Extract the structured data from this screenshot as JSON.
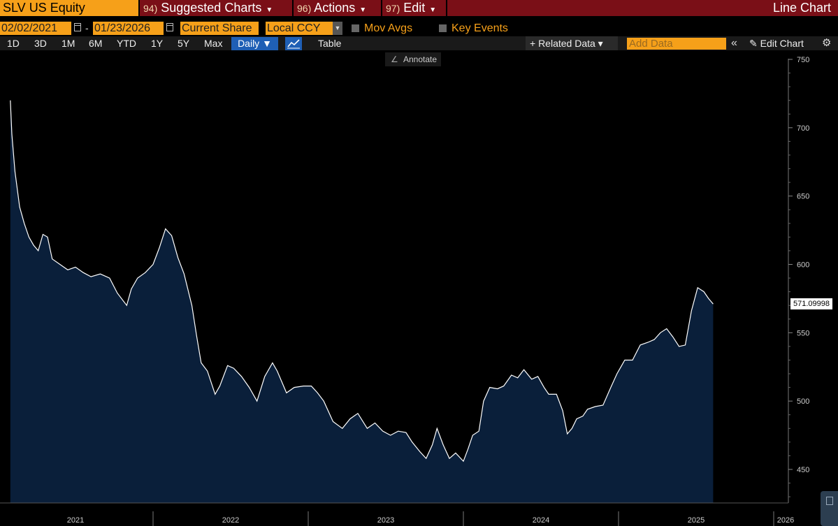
{
  "toolbar": {
    "ticker": "SLV US Equity",
    "menus": [
      {
        "num": "94)",
        "label": "Suggested Charts"
      },
      {
        "num": "96)",
        "label": "Actions"
      },
      {
        "num": "97)",
        "label": "Edit"
      }
    ],
    "chart_type_label": "Line Chart"
  },
  "range": {
    "start_date": "02/02/2021",
    "end_date": "01/23/2026",
    "dash": "-",
    "mode": "Current Share",
    "currency": "Local CCY",
    "mov_avgs": "Mov Avgs",
    "key_events": "Key Events"
  },
  "periods": [
    "1D",
    "3D",
    "1M",
    "6M",
    "YTD",
    "1Y",
    "5Y",
    "Max"
  ],
  "controls": {
    "frequency": "Daily ▼",
    "table": "Table",
    "related": "+ Related Data ▾",
    "add_data_placeholder": "Add Data",
    "edit_chart": "Edit Chart",
    "annotate": "Annotate"
  },
  "colors": {
    "accent": "#f6a019",
    "bar": "#7a0f17",
    "fill": "#0a1f3a",
    "line": "#ffffff"
  },
  "chart_data": {
    "type": "area",
    "x_unit": "year fraction",
    "ylim": [
      425,
      755
    ],
    "yticks": [
      450,
      500,
      550,
      600,
      650,
      700,
      750
    ],
    "xtick_labels": [
      "2021",
      "2022",
      "2023",
      "2024",
      "2025",
      "2026"
    ],
    "last_value_label": "571.09998",
    "series": [
      {
        "points": [
          [
            2021.08,
            720
          ],
          [
            2021.09,
            695
          ],
          [
            2021.11,
            668
          ],
          [
            2021.14,
            642
          ],
          [
            2021.17,
            630
          ],
          [
            2021.2,
            620
          ],
          [
            2021.23,
            614
          ],
          [
            2021.26,
            610
          ],
          [
            2021.29,
            622
          ],
          [
            2021.32,
            620
          ],
          [
            2021.35,
            604
          ],
          [
            2021.4,
            600
          ],
          [
            2021.45,
            596
          ],
          [
            2021.5,
            598
          ],
          [
            2021.55,
            594
          ],
          [
            2021.6,
            591
          ],
          [
            2021.66,
            593
          ],
          [
            2021.72,
            590
          ],
          [
            2021.77,
            579
          ],
          [
            2021.83,
            570
          ],
          [
            2021.86,
            582
          ],
          [
            2021.9,
            590
          ],
          [
            2021.95,
            594
          ],
          [
            2022.0,
            600
          ],
          [
            2022.04,
            612
          ],
          [
            2022.08,
            626
          ],
          [
            2022.12,
            621
          ],
          [
            2022.16,
            605
          ],
          [
            2022.2,
            593
          ],
          [
            2022.25,
            570
          ],
          [
            2022.28,
            548
          ],
          [
            2022.31,
            528
          ],
          [
            2022.35,
            522
          ],
          [
            2022.4,
            505
          ],
          [
            2022.43,
            511
          ],
          [
            2022.48,
            526
          ],
          [
            2022.52,
            524
          ],
          [
            2022.57,
            518
          ],
          [
            2022.62,
            510
          ],
          [
            2022.67,
            500
          ],
          [
            2022.72,
            518
          ],
          [
            2022.77,
            528
          ],
          [
            2022.8,
            522
          ],
          [
            2022.86,
            506
          ],
          [
            2022.91,
            510
          ],
          [
            2022.97,
            511
          ],
          [
            2023.02,
            511
          ],
          [
            2023.06,
            506
          ],
          [
            2023.1,
            500
          ],
          [
            2023.16,
            485
          ],
          [
            2023.22,
            480
          ],
          [
            2023.27,
            487
          ],
          [
            2023.32,
            491
          ],
          [
            2023.38,
            480
          ],
          [
            2023.43,
            484
          ],
          [
            2023.48,
            478
          ],
          [
            2023.53,
            475
          ],
          [
            2023.58,
            478
          ],
          [
            2023.63,
            477
          ],
          [
            2023.67,
            470
          ],
          [
            2023.72,
            463
          ],
          [
            2023.76,
            458
          ],
          [
            2023.8,
            468
          ],
          [
            2023.83,
            480
          ],
          [
            2023.87,
            468
          ],
          [
            2023.91,
            458
          ],
          [
            2023.95,
            462
          ],
          [
            2024.0,
            456
          ],
          [
            2024.03,
            465
          ],
          [
            2024.06,
            475
          ],
          [
            2024.1,
            478
          ],
          [
            2024.13,
            500
          ],
          [
            2024.17,
            510
          ],
          [
            2024.22,
            509
          ],
          [
            2024.26,
            511
          ],
          [
            2024.31,
            519
          ],
          [
            2024.35,
            517
          ],
          [
            2024.39,
            523
          ],
          [
            2024.44,
            516
          ],
          [
            2024.48,
            518
          ],
          [
            2024.52,
            510
          ],
          [
            2024.55,
            505
          ],
          [
            2024.6,
            505
          ],
          [
            2024.64,
            493
          ],
          [
            2024.67,
            476
          ],
          [
            2024.7,
            480
          ],
          [
            2024.73,
            487
          ],
          [
            2024.77,
            489
          ],
          [
            2024.8,
            494
          ],
          [
            2024.85,
            496
          ],
          [
            2024.9,
            497
          ],
          [
            2024.95,
            510
          ],
          [
            2024.99,
            520
          ],
          [
            2025.04,
            530
          ],
          [
            2025.09,
            530
          ],
          [
            2025.14,
            541
          ],
          [
            2025.19,
            543
          ],
          [
            2025.23,
            545
          ],
          [
            2025.27,
            550
          ],
          [
            2025.31,
            553
          ],
          [
            2025.35,
            547
          ],
          [
            2025.39,
            540
          ],
          [
            2025.43,
            541
          ],
          [
            2025.47,
            566
          ],
          [
            2025.51,
            583
          ],
          [
            2025.55,
            580
          ],
          [
            2025.58,
            575
          ],
          [
            2025.61,
            571
          ]
        ]
      }
    ]
  }
}
